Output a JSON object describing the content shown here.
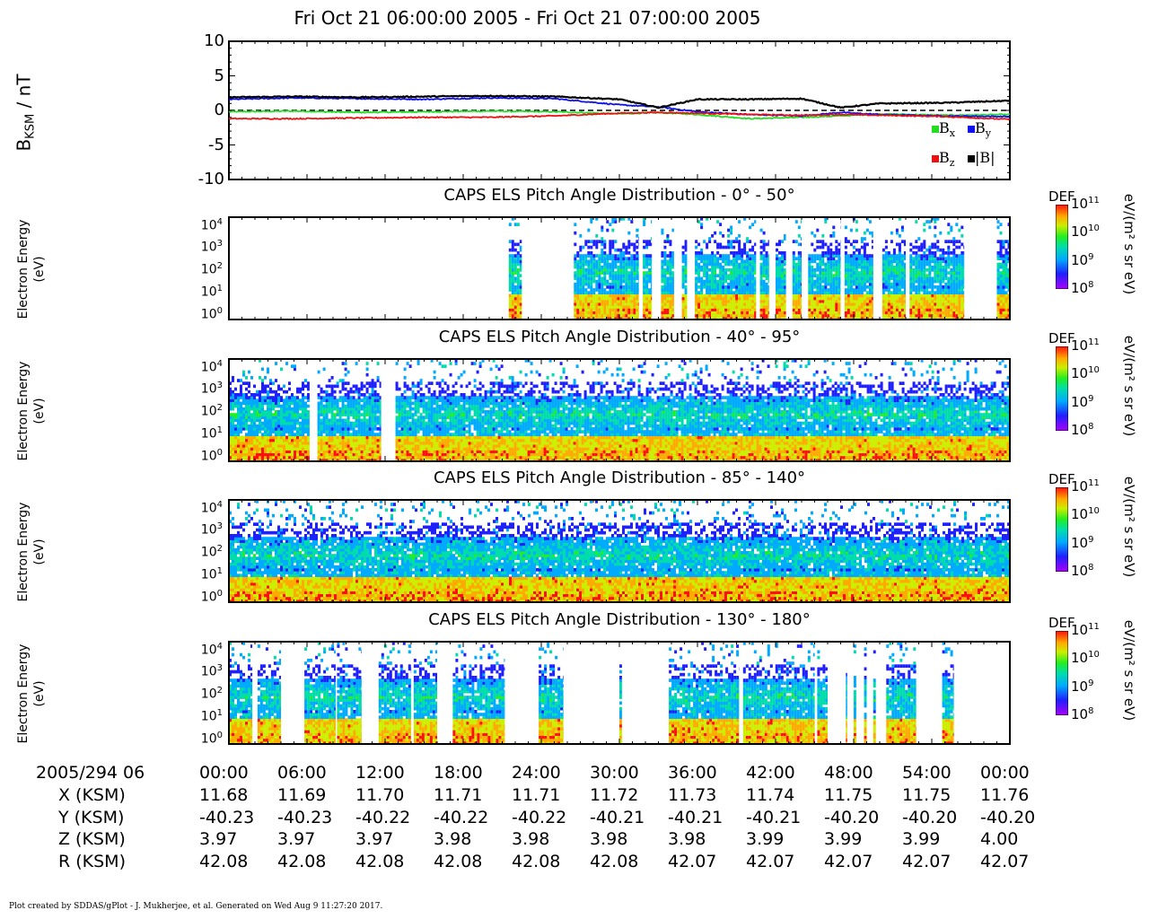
{
  "title": "Fri Oct 21 06:00:00 2005 - Fri Oct 21 07:00:00 2005",
  "mag_panel": {
    "ylabel_main": "B",
    "ylabel_sub": "KSM",
    "ylabel_unit": " / nT",
    "yticks": [
      "10",
      "5",
      "0",
      "-5",
      "-10"
    ],
    "legend": [
      {
        "name": "B",
        "sub": "x",
        "color": "#22dd22"
      },
      {
        "name": "B",
        "sub": "y",
        "color": "#1010ee"
      },
      {
        "name": "B",
        "sub": "z",
        "color": "#ee1010"
      },
      {
        "name": "|B|",
        "sub": "",
        "color": "#000000"
      }
    ]
  },
  "spec_panels": [
    {
      "title": "CAPS ELS Pitch Angle Distribution - 0° - 50°"
    },
    {
      "title": "CAPS ELS Pitch Angle Distribution - 40° - 95°"
    },
    {
      "title": "CAPS ELS Pitch Angle Distribution - 85° - 140°"
    },
    {
      "title": "CAPS ELS Pitch Angle Distribution - 130° - 180°"
    }
  ],
  "spec_ylabel": [
    "Electron Energy",
    "(eV)"
  ],
  "spec_yticks": [
    "10",
    "10",
    "10",
    "10",
    "10"
  ],
  "spec_ytick_exps": [
    "4",
    "3",
    "2",
    "1",
    "0"
  ],
  "colorbar": {
    "label": "DEF",
    "unit": "eV/(m² s sr eV)",
    "ticks": [
      "10",
      "10",
      "10",
      "10"
    ],
    "tick_exps": [
      "11",
      "10",
      "9",
      "8"
    ]
  },
  "ephemeris": {
    "date_label": "2005/294 06",
    "times": [
      "00:00",
      "06:00",
      "12:00",
      "18:00",
      "24:00",
      "30:00",
      "36:00",
      "42:00",
      "48:00",
      "54:00",
      "00:00"
    ],
    "rows": [
      {
        "label": "X (KSM)",
        "values": [
          "11.68",
          "11.69",
          "11.70",
          "11.71",
          "11.71",
          "11.72",
          "11.73",
          "11.74",
          "11.75",
          "11.75",
          "11.76"
        ]
      },
      {
        "label": "Y (KSM)",
        "values": [
          "-40.23",
          "-40.23",
          "-40.22",
          "-40.22",
          "-40.22",
          "-40.21",
          "-40.21",
          "-40.21",
          "-40.20",
          "-40.20",
          "-40.20"
        ]
      },
      {
        "label": "Z (KSM)",
        "values": [
          "3.97",
          "3.97",
          "3.97",
          "3.98",
          "3.98",
          "3.98",
          "3.98",
          "3.99",
          "3.99",
          "3.99",
          "4.00"
        ]
      },
      {
        "label": "R (KSM)",
        "values": [
          "42.08",
          "42.08",
          "42.08",
          "42.08",
          "42.08",
          "42.08",
          "42.07",
          "42.07",
          "42.07",
          "42.07",
          "42.07"
        ]
      }
    ]
  },
  "footer": "Plot created by SDDAS/gPlot - J. Mukherjee, et al.  Generated on Wed Aug 9 11:27:20 2017.",
  "chart_data": [
    {
      "type": "line",
      "title": "",
      "xlabel": "",
      "ylabel": "BKSM / nT",
      "ylim": [
        -10,
        10
      ],
      "x_range_minutes": [
        0,
        60
      ],
      "x": [
        0,
        5,
        10,
        15,
        20,
        25,
        30,
        33,
        36,
        40,
        44,
        47,
        50,
        55,
        60
      ],
      "series": [
        {
          "name": "Bx",
          "color": "#22dd22",
          "values": [
            -0.2,
            -0.1,
            -0.3,
            -0.2,
            -0.1,
            -0.2,
            -0.5,
            -0.3,
            -0.6,
            -1.2,
            -1.0,
            -0.8,
            -0.5,
            -0.7,
            -0.6
          ]
        },
        {
          "name": "By",
          "color": "#1010ee",
          "values": [
            1.6,
            1.8,
            1.7,
            1.6,
            1.8,
            1.7,
            0.8,
            0.5,
            -0.2,
            -0.6,
            -0.8,
            -0.3,
            -0.6,
            -0.8,
            -0.9
          ]
        },
        {
          "name": "Bz",
          "color": "#ee1010",
          "values": [
            -1.2,
            -1.2,
            -1.1,
            -1.0,
            -1.0,
            -0.8,
            -0.4,
            -0.3,
            -0.4,
            -0.6,
            -0.7,
            -0.6,
            -0.7,
            -0.9,
            -1.3
          ]
        },
        {
          "name": "|B|",
          "color": "#000000",
          "values": [
            1.9,
            2.0,
            1.9,
            2.0,
            2.1,
            2.0,
            1.6,
            0.4,
            1.6,
            1.6,
            1.7,
            0.4,
            1.0,
            1.1,
            1.4
          ]
        }
      ]
    },
    {
      "type": "heatmap",
      "title": "CAPS ELS Pitch Angle Distribution - 0° - 50°",
      "ylabel": "Electron Energy (eV)",
      "y_range_eV": [
        0.6,
        25000
      ],
      "data_intervals_minutes": [
        [
          21.5,
          22.5
        ],
        [
          26.5,
          31.5
        ],
        [
          31.8,
          32.5
        ],
        [
          33.2,
          34.2
        ],
        [
          34.8,
          35.2
        ],
        [
          35.8,
          40.5
        ],
        [
          40.8,
          41.5
        ],
        [
          42.0,
          42.8
        ],
        [
          43.3,
          44.0
        ],
        [
          44.5,
          47.0
        ],
        [
          47.3,
          49.5
        ],
        [
          50.2,
          52.0
        ],
        [
          52.3,
          56.5
        ],
        [
          59.0,
          60
        ]
      ]
    },
    {
      "type": "heatmap",
      "title": "CAPS ELS Pitch Angle Distribution - 40° - 95°",
      "ylabel": "Electron Energy (eV)",
      "y_range_eV": [
        0.6,
        25000
      ],
      "data_intervals_minutes": [
        [
          0,
          6.2
        ],
        [
          6.8,
          11.7
        ],
        [
          12.8,
          60
        ]
      ]
    },
    {
      "type": "heatmap",
      "title": "CAPS ELS Pitch Angle Distribution - 85° - 140°",
      "ylabel": "Electron Energy (eV)",
      "y_range_eV": [
        0.6,
        25000
      ],
      "data_intervals_minutes": [
        [
          0,
          60
        ]
      ]
    },
    {
      "type": "heatmap",
      "title": "CAPS ELS Pitch Angle Distribution - 130° - 180°",
      "ylabel": "Electron Energy (eV)",
      "y_range_eV": [
        0.6,
        25000
      ],
      "data_intervals_minutes": [
        [
          0,
          1.8
        ],
        [
          2.2,
          4.0
        ],
        [
          5.8,
          8.2
        ],
        [
          8.3,
          10.2
        ],
        [
          11.5,
          14.0
        ],
        [
          14.2,
          16.0
        ],
        [
          17.2,
          21.2
        ],
        [
          23.8,
          25.7
        ],
        [
          30.0,
          30.2
        ],
        [
          33.8,
          39.2
        ],
        [
          39.5,
          45.0
        ],
        [
          45.2,
          46.0
        ],
        [
          47.4,
          47.5
        ],
        [
          48.0,
          48.2
        ],
        [
          48.8,
          49.0
        ],
        [
          49.5,
          49.7
        ],
        [
          50.5,
          52.8
        ],
        [
          54.8,
          55.7
        ]
      ]
    }
  ]
}
